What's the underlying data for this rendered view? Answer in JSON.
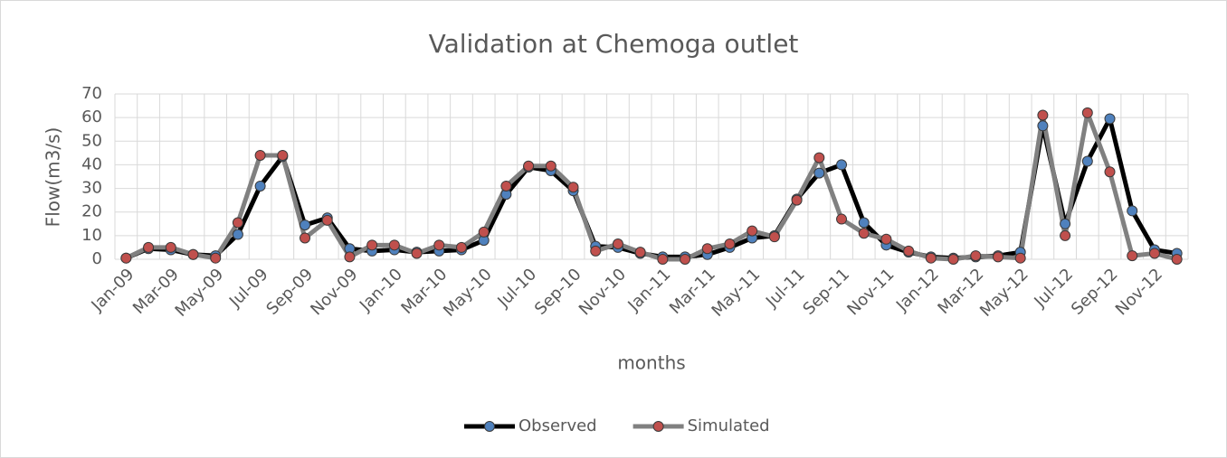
{
  "chart_data": {
    "type": "line",
    "title": "Validation at Chemoga outlet",
    "xlabel": "months",
    "ylabel": "Flow(m3/s)",
    "categories": [
      "Jan-09",
      null,
      "Mar-09",
      null,
      "May-09",
      null,
      "Jul-09",
      null,
      "Sep-09",
      null,
      "Nov-09",
      null,
      "Jan-10",
      null,
      "Mar-10",
      null,
      "May-10",
      null,
      "Jul-10",
      null,
      "Sep-10",
      null,
      "Nov-10",
      null,
      "Jan-11",
      null,
      "Mar-11",
      null,
      "May-11",
      null,
      "Jul-11",
      null,
      "Sep-11",
      null,
      "Nov-11",
      null,
      "Jan-12",
      null,
      "Mar-12",
      null,
      "May-12",
      null,
      "Jul-12",
      null,
      "Sep-12",
      null,
      "Nov-12",
      null
    ],
    "series": [
      {
        "name": "Observed",
        "color": "#000000",
        "marker_color": "#4f81bd",
        "values": [
          0.5,
          4.5,
          4,
          2,
          1.5,
          10.5,
          31,
          43.5,
          14.5,
          17.5,
          4.5,
          3.5,
          4,
          3,
          3.5,
          4,
          8,
          27.5,
          39,
          37.5,
          29,
          5.5,
          5,
          2.5,
          1,
          1,
          2,
          5,
          9,
          10,
          25.5,
          36.5,
          40,
          15.5,
          6,
          3,
          1,
          0.5,
          1,
          1.5,
          3,
          56.5,
          15,
          41.5,
          59.5,
          20.5,
          4,
          2.5
        ]
      },
      {
        "name": "Simulated",
        "color": "#808080",
        "marker_color": "#c0504d",
        "values": [
          0.5,
          5,
          5,
          2,
          0.5,
          15.5,
          44,
          44,
          9,
          16.5,
          1,
          6,
          6,
          2.5,
          6,
          5,
          11.5,
          31,
          39.5,
          39.5,
          30.5,
          3.5,
          6.5,
          3,
          0,
          0,
          4.5,
          6.5,
          12,
          9.5,
          25,
          43,
          17,
          11,
          8.5,
          3.5,
          0.5,
          0,
          1.5,
          1,
          0.5,
          61,
          10,
          62,
          37,
          1.5,
          2.5,
          0
        ]
      }
    ],
    "ylim": [
      0,
      70
    ],
    "yticks": [
      0,
      10,
      20,
      30,
      40,
      50,
      60,
      70
    ],
    "grid": true,
    "legend": "bottom"
  }
}
